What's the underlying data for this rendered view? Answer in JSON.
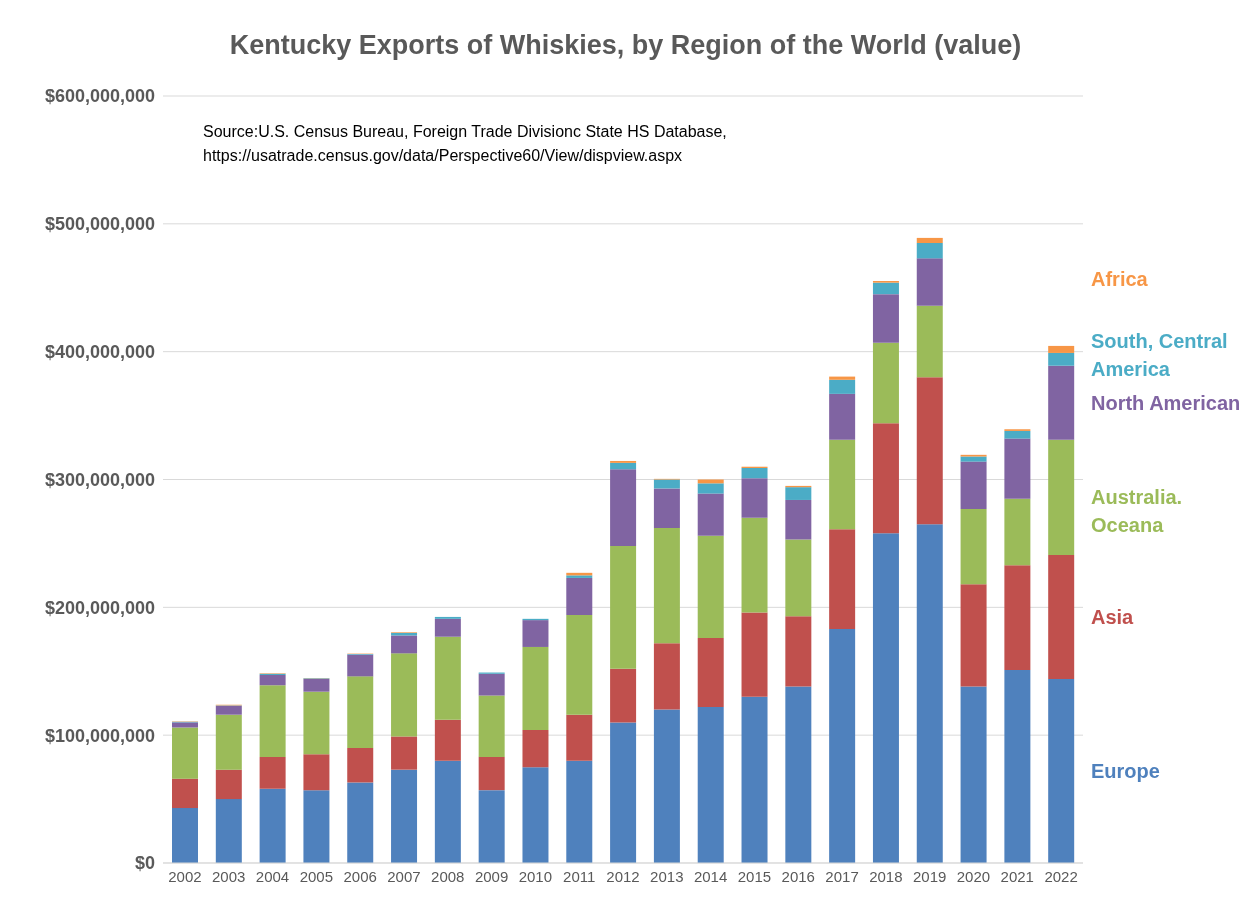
{
  "chart_data": {
    "type": "bar",
    "stacked": true,
    "title": "Kentucky Exports of Whiskies, by Region of the World (value)",
    "annotations": [
      "Source:U.S. Census Bureau, Foreign Trade Divisionc State HS Database,\nhttps://usatrade.census.gov/data/Perspective60/View/dispview.aspx"
    ],
    "categories": [
      "2002",
      "2003",
      "2004",
      "2005",
      "2006",
      "2007",
      "2008",
      "2009",
      "2010",
      "2011",
      "2012",
      "2013",
      "2014",
      "2015",
      "2016",
      "2017",
      "2018",
      "2019",
      "2020",
      "2021",
      "2022"
    ],
    "series": [
      {
        "name": "Europe",
        "color": "#4f81bd",
        "values": [
          43000000,
          50000000,
          58000000,
          57000000,
          63000000,
          73000000,
          80000000,
          57000000,
          75000000,
          80000000,
          110000000,
          120000000,
          122000000,
          130000000,
          138000000,
          183000000,
          258000000,
          265000000,
          138000000,
          151000000,
          144000000
        ]
      },
      {
        "name": "Asia",
        "color": "#c0504d",
        "values": [
          23000000,
          23000000,
          25000000,
          28000000,
          27000000,
          26000000,
          32000000,
          26000000,
          29000000,
          36000000,
          42000000,
          52000000,
          54000000,
          66000000,
          55000000,
          78000000,
          86000000,
          115000000,
          80000000,
          82000000,
          97000000
        ]
      },
      {
        "name": "Australia. Oceana",
        "color": "#9bbb59",
        "values": [
          40000000,
          43000000,
          56000000,
          49000000,
          56000000,
          65000000,
          65000000,
          48000000,
          65000000,
          78000000,
          96000000,
          90000000,
          80000000,
          74000000,
          60000000,
          70000000,
          63000000,
          56000000,
          59000000,
          52000000,
          90000000
        ]
      },
      {
        "name": "North American",
        "color": "#8064a2",
        "values": [
          4000000,
          7000000,
          8000000,
          10000000,
          17000000,
          14000000,
          14000000,
          17000000,
          21000000,
          29000000,
          60000000,
          31000000,
          33000000,
          31000000,
          31000000,
          36000000,
          38000000,
          37000000,
          37000000,
          47000000,
          58000000
        ]
      },
      {
        "name": "South, Central America",
        "color": "#4bacc6",
        "values": [
          500000,
          300000,
          1000000,
          500000,
          500000,
          2000000,
          1500000,
          1000000,
          1000000,
          2000000,
          5000000,
          7000000,
          8000000,
          8000000,
          10000000,
          11000000,
          9000000,
          12000000,
          4000000,
          6000000,
          10000000
        ]
      },
      {
        "name": "Africa",
        "color": "#f79646",
        "values": [
          300000,
          500000,
          400000,
          200000,
          300000,
          500000,
          null,
          null,
          null,
          2000000,
          1500000,
          500000,
          3000000,
          1000000,
          1000000,
          2500000,
          1300000,
          4000000,
          1300000,
          1300000,
          5500000
        ]
      }
    ],
    "ylim": [
      0,
      600000000
    ],
    "yticks": [
      {
        "value": 0,
        "label": "$0"
      },
      {
        "value": 100000000,
        "label": "$100,000,000"
      },
      {
        "value": 200000000,
        "label": "$200,000,000"
      },
      {
        "value": 300000000,
        "label": "$300,000,000"
      },
      {
        "value": 400000000,
        "label": "$400,000,000"
      },
      {
        "value": 500000000,
        "label": "$500,000,000"
      },
      {
        "value": 600000000,
        "label": "$600,000,000"
      }
    ],
    "grid": "y",
    "legend": "right"
  }
}
